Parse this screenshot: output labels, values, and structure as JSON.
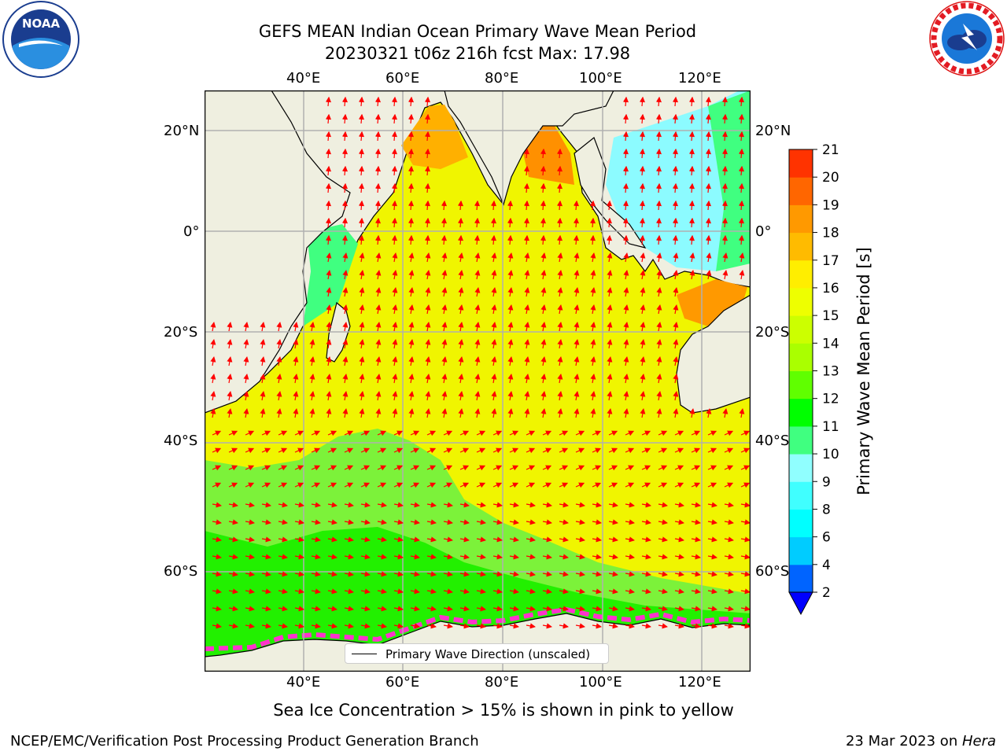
{
  "title": {
    "line1": "GEFS MEAN Indian Ocean Primary Wave Mean Period",
    "line2": "20230321 t06z 216h fcst   Max: 17.98"
  },
  "logos": {
    "left": {
      "text": "NOAA",
      "ring_text": "NATIONAL OCEANIC AND ATMOSPHERIC ADMINISTRATION · U.S. DEPARTMENT OF COMMERCE"
    },
    "right": {
      "ring_text": "NATIONAL WEATHER SERVICE"
    }
  },
  "map": {
    "lon_ticks_top": [
      "40°E",
      "60°E",
      "80°E",
      "100°E",
      "120°E"
    ],
    "lon_ticks_bottom": [
      "40°E",
      "60°E",
      "80°E",
      "100°E",
      "120°E"
    ],
    "lat_ticks_left": [
      "20°N",
      "0°",
      "20°S",
      "40°S",
      "60°S"
    ],
    "lat_ticks_right": [
      "20°N",
      "0°",
      "20°S",
      "40°S",
      "60°S"
    ],
    "legend_label": "Primary Wave Direction (unscaled)",
    "colors": {
      "land": "#efefe0",
      "arrows": "#ff0000",
      "grid": "#b0b0b0"
    }
  },
  "colorbar": {
    "label": "Primary Wave Mean Period [s]",
    "ticks": [
      "2",
      "4",
      "6",
      "8",
      "9",
      "10",
      "11",
      "12",
      "13",
      "14",
      "15",
      "16",
      "17",
      "18",
      "19",
      "20",
      "21"
    ],
    "colors": [
      "#0064ff",
      "#00ccff",
      "#00ffff",
      "#40ffff",
      "#90ffff",
      "#40ff80",
      "#00ff00",
      "#60ff00",
      "#aaff00",
      "#ccff00",
      "#eeff00",
      "#ffee00",
      "#ffbb00",
      "#ff9900",
      "#ff6600",
      "#ff3300"
    ],
    "extend_color": "#0000ff"
  },
  "subtitle": "Sea Ice Concentration > 15% is shown in pink to yellow",
  "footer_left": "NCEP/EMC/Verification Post Processing Product Generation Branch",
  "footer_right_date": "23 Mar 2023 on ",
  "footer_right_host": "Hera"
}
